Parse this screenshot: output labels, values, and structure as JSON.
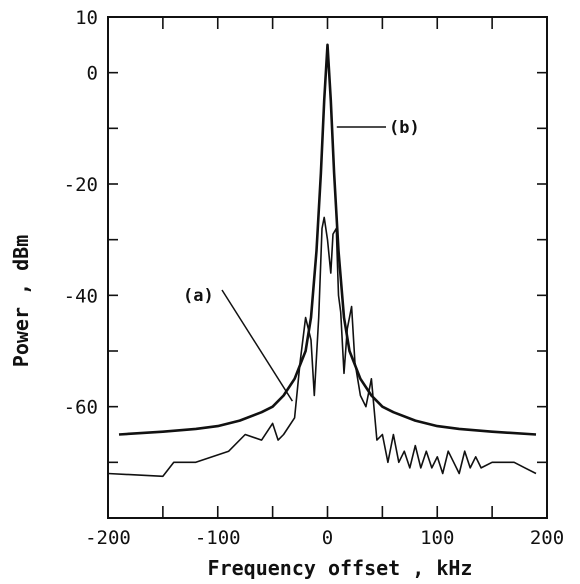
{
  "chart_data": {
    "type": "line",
    "title": "",
    "xlabel": "Frequency offset , kHz",
    "ylabel": "Power , dBm",
    "xlim": [
      -200,
      200
    ],
    "ylim": [
      -80,
      10
    ],
    "x_ticks": [
      -200,
      -100,
      0,
      100,
      200
    ],
    "y_ticks": [
      10,
      0,
      -20,
      -40,
      -60
    ],
    "grid": false,
    "series": [
      {
        "name": "(a)",
        "x": [
          -200,
          -150,
          -140,
          -120,
          -90,
          -75,
          -60,
          -50,
          -45,
          -40,
          -30,
          -25,
          -20,
          -15,
          -12,
          -8,
          -5,
          -3,
          0,
          3,
          5,
          8,
          10,
          12,
          15,
          18,
          22,
          25,
          30,
          35,
          40,
          45,
          50,
          55,
          60,
          65,
          70,
          75,
          80,
          85,
          90,
          95,
          100,
          105,
          110,
          115,
          120,
          125,
          130,
          135,
          140,
          150,
          160,
          170,
          180,
          190
        ],
        "y": [
          -72,
          -72.5,
          -70,
          -70,
          -68,
          -65,
          -66,
          -63,
          -66,
          -65,
          -62,
          -52,
          -44,
          -48,
          -58,
          -44,
          -28,
          -26,
          -30,
          -36,
          -29,
          -28,
          -40,
          -43,
          -54,
          -46,
          -42,
          -52,
          -58,
          -60,
          -55,
          -66,
          -65,
          -70,
          -65,
          -70,
          -68,
          -71,
          -67,
          -71,
          -68,
          -71,
          -69,
          -72,
          -68,
          -70,
          -72,
          -68,
          -71,
          -69,
          -71,
          -70,
          -70,
          -70,
          -71,
          -72
        ]
      },
      {
        "name": "(b)",
        "x": [
          -190,
          -150,
          -120,
          -100,
          -80,
          -60,
          -50,
          -40,
          -30,
          -20,
          -15,
          -10,
          -6,
          -3,
          0,
          3,
          6,
          10,
          15,
          20,
          30,
          40,
          50,
          60,
          80,
          100,
          120,
          150,
          190
        ],
        "y": [
          -65,
          -64.5,
          -64,
          -63.5,
          -62.5,
          -61,
          -60,
          -58,
          -55,
          -50,
          -44,
          -32,
          -18,
          -5,
          5,
          -5,
          -18,
          -32,
          -44,
          -50,
          -55,
          -58,
          -60,
          -61,
          -62.5,
          -63.5,
          -64,
          -64.5,
          -65
        ]
      }
    ],
    "annotations": [
      {
        "text": "(a)",
        "series": "(a)",
        "point": [
          -32,
          -59
        ]
      },
      {
        "text": "(b)",
        "series": "(b)",
        "point": [
          3,
          -10
        ]
      }
    ]
  }
}
